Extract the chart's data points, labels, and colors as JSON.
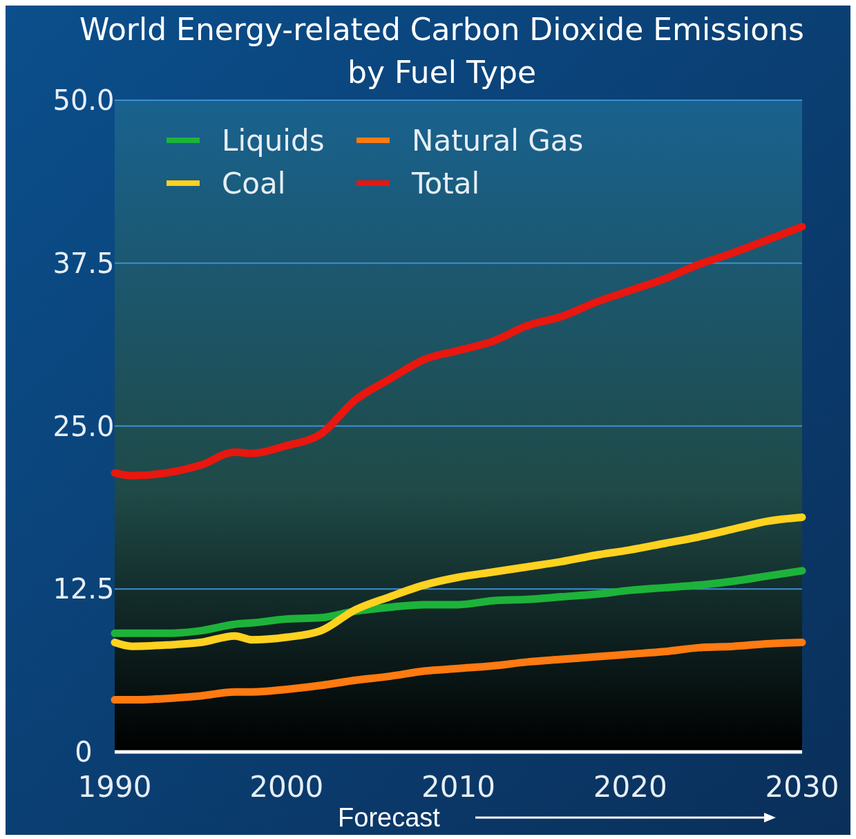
{
  "chart_data": {
    "type": "line",
    "title": "World Energy-related Carbon Dioxide Emissions by Fuel Type",
    "x": [
      1990,
      1991,
      1993,
      1995,
      1997,
      1998,
      2000,
      2002,
      2004,
      2006,
      2008,
      2010,
      2012,
      2014,
      2016,
      2018,
      2020,
      2022,
      2024,
      2026,
      2028,
      2030
    ],
    "series": [
      {
        "name": "Liquids",
        "color": "#1db33a",
        "values": [
          9.1,
          9.1,
          9.1,
          9.3,
          9.8,
          9.9,
          10.2,
          10.3,
          10.8,
          11.1,
          11.3,
          11.3,
          11.6,
          11.7,
          11.9,
          12.1,
          12.4,
          12.6,
          12.8,
          13.1,
          13.5,
          13.9
        ]
      },
      {
        "name": "Coal",
        "color": "#ffd21f",
        "values": [
          8.4,
          8.1,
          8.2,
          8.4,
          8.9,
          8.6,
          8.8,
          9.3,
          10.9,
          11.9,
          12.8,
          13.4,
          13.8,
          14.2,
          14.6,
          15.1,
          15.5,
          16.0,
          16.5,
          17.1,
          17.7,
          18.0
        ]
      },
      {
        "name": "Natural Gas",
        "color": "#ff7a10",
        "values": [
          4.0,
          4.0,
          4.1,
          4.3,
          4.6,
          4.6,
          4.8,
          5.1,
          5.5,
          5.8,
          6.2,
          6.4,
          6.6,
          6.9,
          7.1,
          7.3,
          7.5,
          7.7,
          8.0,
          8.1,
          8.3,
          8.4
        ]
      },
      {
        "name": "Total",
        "color": "#e8170f",
        "values": [
          21.4,
          21.2,
          21.4,
          22.0,
          23.0,
          22.9,
          23.5,
          24.4,
          27.0,
          28.6,
          30.1,
          30.8,
          31.5,
          32.7,
          33.4,
          34.5,
          35.4,
          36.3,
          37.4,
          38.3,
          39.3,
          40.3
        ]
      }
    ],
    "xlim": [
      1990,
      2030
    ],
    "xticks": [
      1990,
      2000,
      2010,
      2020,
      2030
    ],
    "ylim": [
      0,
      50
    ],
    "yticks": [
      {
        "value": 0,
        "label": "0"
      },
      {
        "value": 12.5,
        "label": "12.5"
      },
      {
        "value": 25,
        "label": "25.0"
      },
      {
        "value": 37.5,
        "label": "37.5"
      },
      {
        "value": 50,
        "label": "50.0"
      }
    ],
    "grid": "y",
    "legend": "top left",
    "marker": "none",
    "line_style": "solid",
    "annotations": [
      "Forecast"
    ]
  }
}
